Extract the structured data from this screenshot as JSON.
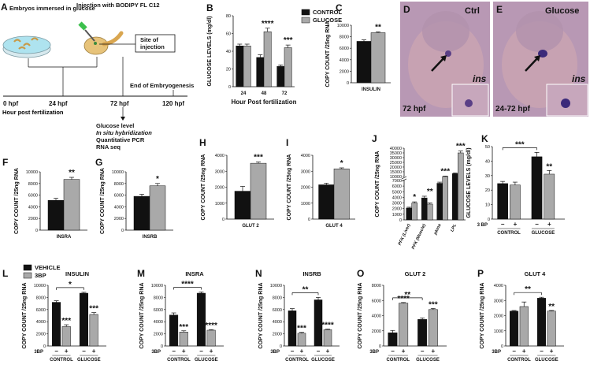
{
  "colors": {
    "control": "#111111",
    "treated": "#a9a9a9",
    "photo_bg": "#b898b4",
    "embryo": "#c9a3b1",
    "dish": "#aee3ef"
  },
  "panel_a": {
    "label": "A",
    "dish_caption": "Embryos immersed in glucose",
    "injection_caption": "Injection with BODIPY FL C12",
    "site_box": "Site of injection",
    "end_label": "End of Embryogenesis",
    "timepoints": [
      "0 hpf",
      "24 hpf",
      "72 hpf",
      "120 hpf"
    ],
    "hpf_note": "Hour post fertilization",
    "assays": [
      "Glucose level",
      "In situ hybridization",
      "Quantitative PCR",
      "RNA seq"
    ]
  },
  "photos": [
    {
      "label": "D",
      "title": "Ctrl",
      "time": "72 hpf",
      "inset": "ins"
    },
    {
      "label": "E",
      "title": "Glucose",
      "time": "24-72 hpf",
      "inset": "ins"
    }
  ],
  "chart_data": [
    {
      "id": "B",
      "type": "bar",
      "categories": [
        "24",
        "48",
        "72"
      ],
      "xlabel": "Hour Post fertilization",
      "ylabel": "GLUCOSE LEVELS (mg/dl)",
      "ylim": [
        0,
        80
      ],
      "yticks": [
        0,
        20,
        40,
        60,
        80
      ],
      "legend": [
        "CONTROL",
        "GLUCOSE"
      ],
      "series": [
        {
          "name": "CONTROL",
          "values": [
            46,
            33,
            23
          ],
          "errors": [
            2,
            3,
            1.5
          ]
        },
        {
          "name": "GLUCOSE",
          "values": [
            46,
            62,
            44
          ],
          "errors": [
            2,
            4,
            3
          ]
        }
      ],
      "annotations": [
        {
          "category": 1,
          "text": "****"
        },
        {
          "category": 2,
          "text": "***"
        }
      ]
    },
    {
      "id": "C",
      "type": "bar",
      "categories": [
        "INSULIN"
      ],
      "ylabel": "COPY COUNT /25ng RNA",
      "ylim": [
        0,
        10000
      ],
      "yticks": [
        0,
        2000,
        4000,
        6000,
        8000,
        10000
      ],
      "series": [
        {
          "values": [
            7200
          ],
          "errors": [
            250
          ]
        },
        {
          "values": [
            8700
          ],
          "errors": [
            150
          ]
        }
      ],
      "annotations": [
        {
          "category": 0,
          "text": "**"
        }
      ]
    },
    {
      "id": "F",
      "type": "bar",
      "categories": [
        "INSRA"
      ],
      "ylabel": "COPY COUNT /25ng RNA",
      "ylim": [
        0,
        10000
      ],
      "yticks": [
        0,
        2000,
        4000,
        6000,
        8000,
        10000
      ],
      "series": [
        {
          "values": [
            5100
          ],
          "errors": [
            350
          ]
        },
        {
          "values": [
            8700
          ],
          "errors": [
            350
          ]
        }
      ],
      "annotations": [
        {
          "category": 0,
          "text": "**"
        }
      ]
    },
    {
      "id": "G",
      "type": "bar",
      "categories": [
        "INSRB"
      ],
      "ylabel": "COPY COUNT /25ng RNA",
      "ylim": [
        0,
        10000
      ],
      "yticks": [
        0,
        2000,
        4000,
        6000,
        8000,
        10000
      ],
      "series": [
        {
          "values": [
            5800
          ],
          "errors": [
            350
          ]
        },
        {
          "values": [
            7600
          ],
          "errors": [
            400
          ]
        }
      ],
      "annotations": [
        {
          "category": 0,
          "text": "*"
        }
      ]
    },
    {
      "id": "H",
      "type": "bar",
      "categories": [
        "GLUT 2"
      ],
      "ylabel": "COPY COUNT /25ng RNA",
      "ylim": [
        0,
        4000
      ],
      "yticks": [
        0,
        1000,
        2000,
        3000,
        4000
      ],
      "series": [
        {
          "values": [
            1750
          ],
          "errors": [
            300
          ]
        },
        {
          "values": [
            3500
          ],
          "errors": [
            80
          ]
        }
      ],
      "annotations": [
        {
          "category": 0,
          "text": "***"
        }
      ]
    },
    {
      "id": "I",
      "type": "bar",
      "categories": [
        "GLUT 4"
      ],
      "ylabel": "COPY COUNT /25ng RNA",
      "ylim": [
        0,
        4000
      ],
      "yticks": [
        0,
        1000,
        2000,
        3000,
        4000
      ],
      "series": [
        {
          "values": [
            2150
          ],
          "errors": [
            100
          ]
        },
        {
          "values": [
            3150
          ],
          "errors": [
            60
          ]
        }
      ],
      "annotations": [
        {
          "category": 0,
          "text": "*"
        }
      ]
    },
    {
      "id": "J",
      "type": "bar",
      "categories": [
        "PFK (Liver)",
        "PFK (Muscle)",
        "pkma",
        "LPL"
      ],
      "ylabel": "COPY COUNT /25ng RNA",
      "ylim": [
        0,
        40000
      ],
      "axis_break": true,
      "yticks": [
        0,
        1000,
        2000,
        3000,
        4000,
        5000,
        6000,
        7000,
        10000,
        15000,
        20000,
        25000,
        30000,
        35000,
        40000
      ],
      "series": [
        {
          "values": [
            2100,
            3900,
            6500,
            13000
          ],
          "errors": [
            150,
            300,
            200,
            800
          ]
        },
        {
          "values": [
            3000,
            2800,
            10000,
            35000
          ],
          "errors": [
            200,
            200,
            500,
            2000
          ]
        }
      ],
      "annotations": [
        {
          "category": 0,
          "text": "*"
        },
        {
          "category": 1,
          "text": "**"
        },
        {
          "category": 2,
          "text": "***"
        },
        {
          "category": 3,
          "text": "***"
        }
      ]
    },
    {
      "id": "K",
      "type": "bar",
      "groups": [
        "CONTROL",
        "GLUCOSE"
      ],
      "treatment_label": "3 BP",
      "treatment_signs": [
        "−",
        "+"
      ],
      "ylabel": "GLUCOSE LEVELS (mg/dl)",
      "ylim": [
        0,
        50
      ],
      "yticks": [
        0,
        10,
        20,
        30,
        40,
        50
      ],
      "values": [
        24.5,
        23.5,
        43,
        31
      ],
      "errors": [
        1.5,
        2,
        3,
        2.5
      ],
      "annotations": [
        {
          "bar": 3,
          "text": "**"
        }
      ],
      "bracket": {
        "from": 0,
        "to": 2,
        "text": "***"
      }
    },
    {
      "id": "L",
      "type": "bar",
      "title": "INSULIN",
      "legend": [
        "VEHICLE",
        "3BP"
      ],
      "groups": [
        "CONTROL",
        "GLUCOSE"
      ],
      "treatment_label": "3BP",
      "treatment_signs": [
        "−",
        "+"
      ],
      "ylabel": "COPY COUNT /25ng RNA",
      "ylim": [
        0,
        10000
      ],
      "yticks": [
        0,
        2000,
        4000,
        6000,
        8000,
        10000
      ],
      "values": [
        7200,
        3200,
        8700,
        5200
      ],
      "errors": [
        250,
        300,
        150,
        300
      ],
      "annotations": [
        {
          "bar": 1,
          "text": "***"
        },
        {
          "bar": 3,
          "text": "***"
        }
      ],
      "bracket": {
        "from": 0,
        "to": 2,
        "text": "*"
      }
    },
    {
      "id": "M",
      "type": "bar",
      "title": "INSRA",
      "groups": [
        "CONTROL",
        "GLUCOSE"
      ],
      "treatment_label": "3BP",
      "treatment_signs": [
        "−",
        "+"
      ],
      "ylabel": "COPY COUNT /25ng RNA",
      "ylim": [
        0,
        10000
      ],
      "yticks": [
        0,
        2000,
        4000,
        6000,
        8000,
        10000
      ],
      "values": [
        5100,
        2300,
        8700,
        2600
      ],
      "errors": [
        350,
        200,
        200,
        100
      ],
      "annotations": [
        {
          "bar": 1,
          "text": "***"
        },
        {
          "bar": 3,
          "text": "****"
        }
      ],
      "bracket": {
        "from": 0,
        "to": 2,
        "text": "****"
      }
    },
    {
      "id": "N",
      "type": "bar",
      "title": "INSRB",
      "groups": [
        "CONTROL",
        "GLUCOSE"
      ],
      "treatment_label": "3BP",
      "treatment_signs": [
        "−",
        "+"
      ],
      "ylabel": "COPY COUNT /25ng RNA",
      "ylim": [
        0,
        10000
      ],
      "yticks": [
        0,
        2000,
        4000,
        6000,
        8000,
        10000
      ],
      "values": [
        5800,
        2100,
        7600,
        2700
      ],
      "errors": [
        350,
        150,
        400,
        100
      ],
      "annotations": [
        {
          "bar": 1,
          "text": "***"
        },
        {
          "bar": 3,
          "text": "****"
        }
      ],
      "bracket": {
        "from": 0,
        "to": 2,
        "text": "**"
      }
    },
    {
      "id": "O",
      "type": "bar",
      "title": "GLUT 2",
      "groups": [
        "CONTROL",
        "GLUCOSE"
      ],
      "treatment_label": "3BP",
      "treatment_signs": [
        "−",
        "+"
      ],
      "ylabel": "COPY COUNT /25ng RNA",
      "ylim": [
        0,
        8000
      ],
      "yticks": [
        0,
        2000,
        4000,
        6000,
        8000
      ],
      "values": [
        1750,
        5650,
        3500,
        4800
      ],
      "errors": [
        300,
        80,
        200,
        150
      ],
      "annotations": [
        {
          "bar": 1,
          "text": "****"
        },
        {
          "bar": 3,
          "text": "***"
        }
      ],
      "bracket": {
        "from": 0,
        "to": 2,
        "text": "**"
      }
    },
    {
      "id": "P",
      "type": "bar",
      "title": "GLUT 4",
      "groups": [
        "CONTROL",
        "GLUCOSE"
      ],
      "treatment_label": "3BP",
      "treatment_signs": [
        "−",
        "+"
      ],
      "ylabel": "COPY COUNT /25ng RNA",
      "ylim": [
        0,
        4000
      ],
      "yticks": [
        0,
        1000,
        2000,
        3000,
        4000
      ],
      "values": [
        2300,
        2600,
        3150,
        2300
      ],
      "errors": [
        40,
        300,
        60,
        40
      ],
      "annotations": [
        {
          "bar": 3,
          "text": "**"
        }
      ],
      "bracket": {
        "from": 0,
        "to": 2,
        "text": "**"
      }
    }
  ]
}
